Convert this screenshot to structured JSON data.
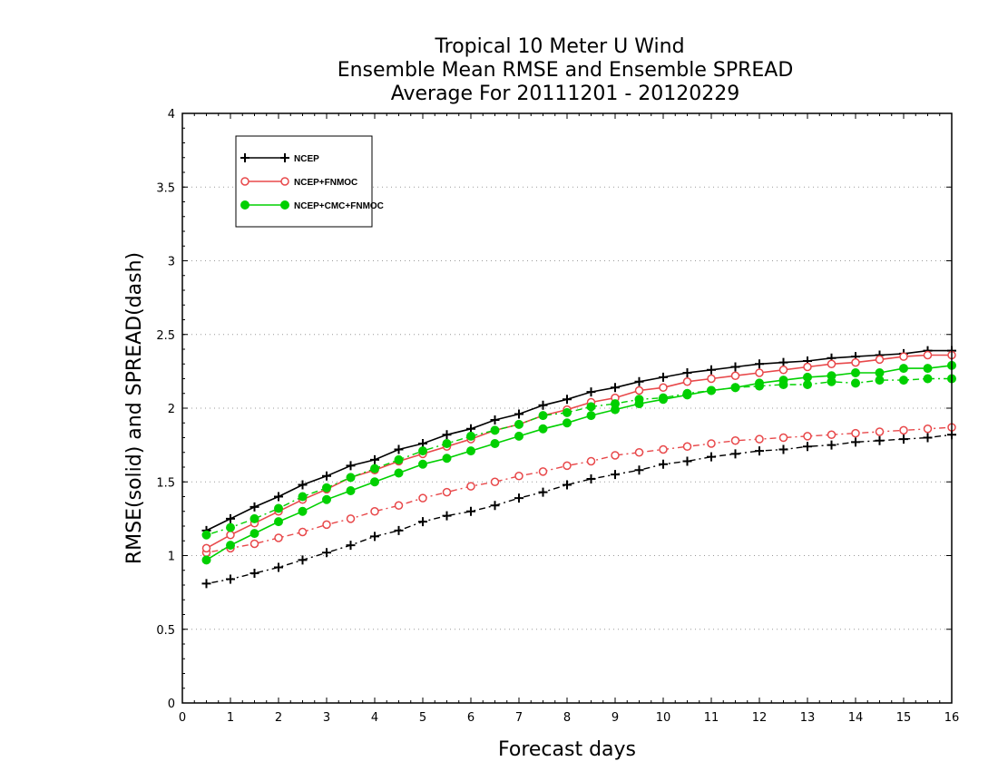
{
  "chart_data": {
    "type": "line",
    "title_lines": [
      "Tropical 10 Meter U Wind",
      "Ensemble Mean RMSE and Ensemble SPREAD",
      "Average For 20111201 - 20120229"
    ],
    "xlabel": "Forecast days",
    "ylabel": "RMSE(solid) and SPREAD(dash)",
    "xlim": [
      0,
      16
    ],
    "ylim": [
      0,
      4
    ],
    "x_ticks": [
      "0",
      "1",
      "2",
      "3",
      "4",
      "5",
      "6",
      "7",
      "8",
      "9",
      "10",
      "11",
      "12",
      "13",
      "14",
      "15",
      "16"
    ],
    "y_ticks": [
      "0",
      "0.5",
      "1",
      "1.5",
      "2",
      "2.5",
      "3",
      "3.5",
      "4"
    ],
    "grid": "horizontal dotted",
    "legend_position": "top-left",
    "x": [
      0.5,
      1,
      1.5,
      2,
      2.5,
      3,
      3.5,
      4,
      4.5,
      5,
      5.5,
      6,
      6.5,
      7,
      7.5,
      8,
      8.5,
      9,
      9.5,
      10,
      10.5,
      11,
      11.5,
      12,
      12.5,
      13,
      13.5,
      14,
      14.5,
      15,
      15.5,
      16
    ],
    "series": [
      {
        "name": "NCEP",
        "color": "#000000",
        "marker": "plus",
        "rmse": [
          1.17,
          1.25,
          1.33,
          1.4,
          1.48,
          1.54,
          1.61,
          1.65,
          1.72,
          1.76,
          1.82,
          1.86,
          1.92,
          1.96,
          2.02,
          2.06,
          2.11,
          2.14,
          2.18,
          2.21,
          2.24,
          2.26,
          2.28,
          2.3,
          2.31,
          2.32,
          2.34,
          2.35,
          2.36,
          2.37,
          2.39,
          2.39
        ],
        "spread": [
          0.81,
          0.84,
          0.88,
          0.92,
          0.97,
          1.02,
          1.07,
          1.13,
          1.17,
          1.23,
          1.27,
          1.3,
          1.34,
          1.39,
          1.43,
          1.48,
          1.52,
          1.55,
          1.58,
          1.62,
          1.64,
          1.67,
          1.69,
          1.71,
          1.72,
          1.74,
          1.75,
          1.77,
          1.78,
          1.79,
          1.8,
          1.82
        ]
      },
      {
        "name": "NCEP+FNMOC",
        "color": "#e8484a",
        "marker": "open-circle",
        "rmse": [
          1.05,
          1.14,
          1.22,
          1.3,
          1.38,
          1.45,
          1.53,
          1.58,
          1.64,
          1.69,
          1.74,
          1.79,
          1.85,
          1.89,
          1.95,
          1.99,
          2.04,
          2.07,
          2.12,
          2.14,
          2.18,
          2.2,
          2.22,
          2.24,
          2.26,
          2.28,
          2.3,
          2.31,
          2.33,
          2.35,
          2.36,
          2.36
        ],
        "spread": [
          1.02,
          1.05,
          1.08,
          1.12,
          1.16,
          1.21,
          1.25,
          1.3,
          1.34,
          1.39,
          1.43,
          1.47,
          1.5,
          1.54,
          1.57,
          1.61,
          1.64,
          1.68,
          1.7,
          1.72,
          1.74,
          1.76,
          1.78,
          1.79,
          1.8,
          1.81,
          1.82,
          1.83,
          1.84,
          1.85,
          1.86,
          1.87
        ]
      },
      {
        "name": "NCEP+CMC+FNMOC",
        "color": "#00d000",
        "marker": "filled-circle",
        "rmse": [
          0.97,
          1.07,
          1.15,
          1.23,
          1.3,
          1.38,
          1.44,
          1.5,
          1.56,
          1.62,
          1.66,
          1.71,
          1.76,
          1.81,
          1.86,
          1.9,
          1.95,
          1.99,
          2.03,
          2.06,
          2.09,
          2.12,
          2.14,
          2.17,
          2.19,
          2.21,
          2.22,
          2.24,
          2.24,
          2.27,
          2.27,
          2.29
        ],
        "spread": [
          1.14,
          1.19,
          1.25,
          1.32,
          1.4,
          1.46,
          1.53,
          1.59,
          1.65,
          1.71,
          1.76,
          1.81,
          1.85,
          1.89,
          1.95,
          1.97,
          2.01,
          2.03,
          2.06,
          2.07,
          2.1,
          2.12,
          2.14,
          2.15,
          2.16,
          2.16,
          2.18,
          2.17,
          2.19,
          2.19,
          2.2,
          2.2
        ]
      }
    ]
  }
}
